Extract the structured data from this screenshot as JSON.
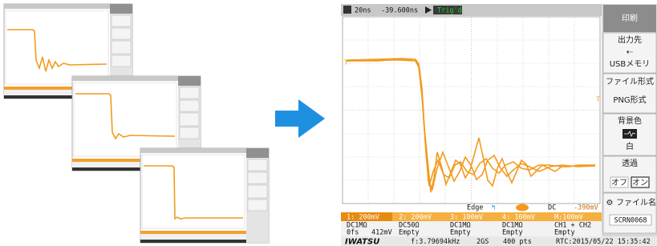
{
  "scope": {
    "timebase": "20ns",
    "delay": "-39.600ns",
    "trigger_state": "Trig'd",
    "trigger": {
      "type": "Edge",
      "coupling": "DC",
      "level": "-390mV"
    },
    "channels": [
      {
        "scale": "1: 200mV",
        "coupling": "DC1MΩ",
        "offset": "0fs",
        "value": "412mV"
      },
      {
        "scale": "2: 200mV",
        "coupling": "DC50Ω",
        "value": "Empty"
      },
      {
        "scale": "3: 100mV",
        "coupling": "DC1MΩ",
        "value": "Empty"
      },
      {
        "scale": "4: 100mV",
        "coupling": "DC1MΩ",
        "value": "Empty"
      }
    ],
    "math": {
      "scale": "M:100mV",
      "source": "CH1 + CH2",
      "value": "Empty"
    },
    "footer": {
      "brand": "IWATSU",
      "frequency": "f:3.79694kHz",
      "sample_rate": "2GS",
      "record": "400 pts",
      "clock": "RTC:2015/05/22 15:35:42"
    }
  },
  "menu": {
    "print": "印刷",
    "output_label": "出力先",
    "output_value": "USBメモリ",
    "format_label": "ファイル形式",
    "format_value": "PNG形式",
    "background_label": "背景色",
    "background_value": "白",
    "transparent_label": "透過",
    "off": "オフ",
    "on": "オン",
    "filename_label": "ファイル名",
    "filename_value": "SCRN0068"
  }
}
